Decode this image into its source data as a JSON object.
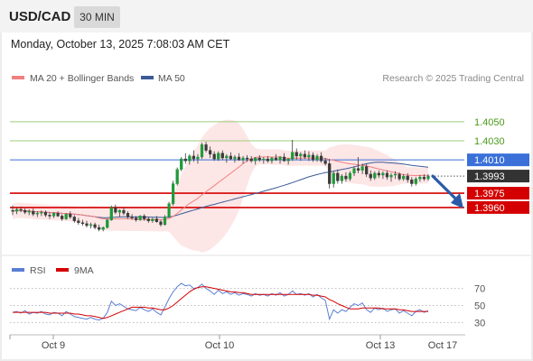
{
  "header": {
    "symbol": "USD/CAD",
    "interval": "30 MIN",
    "datetime": "Monday, October 13, 2025 7:08:03 AM CET"
  },
  "legend": {
    "ma20": "MA 20 + Bollinger Bands",
    "ma50": "MA 50",
    "credit": "Research © 2025 Trading Central"
  },
  "colors": {
    "ma20": "#f08080",
    "ma50": "#3a5a98",
    "bands": "#fde2e2",
    "resistance": "#9ccc7a",
    "pivot": "#3a70d8",
    "support": "#d40000",
    "price_tag": "#333333",
    "arrow": "#2a5aa8",
    "rsi": "#5a7fd4",
    "rsi_ma": "#d40000"
  },
  "chart_data": [
    {
      "type": "candlestick",
      "ylim": [
        1.3922,
        1.4085
      ],
      "x_ticks": [
        "Oct 9",
        "Oct 10",
        "Oct 13",
        "Oct 17"
      ],
      "levels": [
        {
          "value": 1.405,
          "label": "1.4050",
          "kind": "resistance"
        },
        {
          "value": 1.403,
          "label": "1.4030",
          "kind": "resistance"
        },
        {
          "value": 1.401,
          "label": "1.4010",
          "kind": "pivot"
        },
        {
          "value": 1.3975,
          "label": "1.3975",
          "kind": "support"
        },
        {
          "value": 1.396,
          "label": "1.3960",
          "kind": "support"
        }
      ],
      "last_price": {
        "value": 1.3993,
        "label": "1.3993"
      },
      "forecast": {
        "from": 1.3993,
        "to": 1.396,
        "direction": "down"
      },
      "series": [
        {
          "name": "MA 20 + Bollinger Bands"
        },
        {
          "name": "MA 50"
        }
      ],
      "ohlc": [
        [
          1.3957,
          1.3962,
          1.3952,
          1.3956
        ],
        [
          1.3956,
          1.396,
          1.3953,
          1.3958
        ],
        [
          1.3958,
          1.3961,
          1.3955,
          1.3957
        ],
        [
          1.3957,
          1.3959,
          1.3953,
          1.3955
        ],
        [
          1.3955,
          1.3958,
          1.3952,
          1.3956
        ],
        [
          1.3956,
          1.3959,
          1.3951,
          1.3953
        ],
        [
          1.3953,
          1.3956,
          1.395,
          1.3954
        ],
        [
          1.3954,
          1.3957,
          1.3951,
          1.3955
        ],
        [
          1.3955,
          1.3957,
          1.395,
          1.3952
        ],
        [
          1.3952,
          1.3955,
          1.3948,
          1.3951
        ],
        [
          1.3951,
          1.3955,
          1.3949,
          1.3954
        ],
        [
          1.3954,
          1.3956,
          1.395,
          1.3951
        ],
        [
          1.3951,
          1.3953,
          1.3946,
          1.3948
        ],
        [
          1.3948,
          1.3954,
          1.3947,
          1.3953
        ],
        [
          1.3953,
          1.3956,
          1.3948,
          1.395
        ],
        [
          1.395,
          1.3952,
          1.3944,
          1.3946
        ],
        [
          1.3946,
          1.3949,
          1.3942,
          1.3944
        ],
        [
          1.3944,
          1.3947,
          1.3941,
          1.3943
        ],
        [
          1.3943,
          1.3946,
          1.3939,
          1.3941
        ],
        [
          1.3941,
          1.3944,
          1.3938,
          1.3942
        ],
        [
          1.3942,
          1.3944,
          1.3937,
          1.3939
        ],
        [
          1.3939,
          1.3942,
          1.3935,
          1.3937
        ],
        [
          1.3937,
          1.394,
          1.3935,
          1.3939
        ],
        [
          1.3939,
          1.3948,
          1.3938,
          1.3947
        ],
        [
          1.3947,
          1.3962,
          1.3946,
          1.396
        ],
        [
          1.396,
          1.3963,
          1.3953,
          1.3955
        ],
        [
          1.3955,
          1.3958,
          1.395,
          1.3957
        ],
        [
          1.3957,
          1.396,
          1.3952,
          1.3954
        ],
        [
          1.3954,
          1.3956,
          1.3948,
          1.395
        ],
        [
          1.395,
          1.3953,
          1.3947,
          1.3949
        ],
        [
          1.3949,
          1.3951,
          1.3945,
          1.3947
        ],
        [
          1.3947,
          1.3952,
          1.3946,
          1.3951
        ],
        [
          1.3951,
          1.3953,
          1.3946,
          1.3948
        ],
        [
          1.3948,
          1.395,
          1.3944,
          1.3946
        ],
        [
          1.3946,
          1.3949,
          1.3944,
          1.3948
        ],
        [
          1.3948,
          1.3951,
          1.3944,
          1.3945
        ],
        [
          1.3945,
          1.3947,
          1.394,
          1.3942
        ],
        [
          1.3942,
          1.3952,
          1.3941,
          1.395
        ],
        [
          1.395,
          1.3966,
          1.3949,
          1.3964
        ],
        [
          1.3964,
          1.3988,
          1.3962,
          1.3985
        ],
        [
          1.3985,
          1.4002,
          1.3983,
          1.4
        ],
        [
          1.4,
          1.4013,
          1.3998,
          1.4011
        ],
        [
          1.4011,
          1.4017,
          1.4006,
          1.4009
        ],
        [
          1.4009,
          1.4016,
          1.4005,
          1.4014
        ],
        [
          1.4014,
          1.402,
          1.4008,
          1.4011
        ],
        [
          1.4011,
          1.4016,
          1.4006,
          1.4013
        ],
        [
          1.4013,
          1.4028,
          1.4011,
          1.4026
        ],
        [
          1.4026,
          1.4029,
          1.4018,
          1.402
        ],
        [
          1.402,
          1.4024,
          1.4012,
          1.4016
        ],
        [
          1.4016,
          1.4019,
          1.4009,
          1.4011
        ],
        [
          1.4011,
          1.4019,
          1.4009,
          1.4017
        ],
        [
          1.4017,
          1.402,
          1.401,
          1.4012
        ],
        [
          1.4012,
          1.4016,
          1.4007,
          1.4014
        ],
        [
          1.4014,
          1.4018,
          1.401,
          1.4011
        ],
        [
          1.4011,
          1.4015,
          1.4007,
          1.4013
        ],
        [
          1.4013,
          1.4017,
          1.4009,
          1.401
        ],
        [
          1.401,
          1.4014,
          1.4006,
          1.4012
        ],
        [
          1.4012,
          1.4015,
          1.4008,
          1.4011
        ],
        [
          1.4011,
          1.4014,
          1.4007,
          1.4009
        ],
        [
          1.4009,
          1.4013,
          1.4005,
          1.4012
        ],
        [
          1.4012,
          1.4015,
          1.4008,
          1.401
        ],
        [
          1.401,
          1.4013,
          1.4006,
          1.4011
        ],
        [
          1.4011,
          1.4014,
          1.4007,
          1.4009
        ],
        [
          1.4009,
          1.4013,
          1.4006,
          1.4012
        ],
        [
          1.4012,
          1.4016,
          1.4009,
          1.401
        ],
        [
          1.401,
          1.4014,
          1.4006,
          1.4013
        ],
        [
          1.4013,
          1.4017,
          1.4008,
          1.4009
        ],
        [
          1.4009,
          1.4012,
          1.4005,
          1.4011
        ],
        [
          1.4011,
          1.4031,
          1.4009,
          1.4018
        ],
        [
          1.4018,
          1.4022,
          1.401,
          1.4014
        ],
        [
          1.4014,
          1.4018,
          1.4009,
          1.4016
        ],
        [
          1.4016,
          1.402,
          1.4011,
          1.4013
        ],
        [
          1.4013,
          1.4019,
          1.4009,
          1.4015
        ],
        [
          1.4015,
          1.4018,
          1.4008,
          1.401
        ],
        [
          1.401,
          1.4016,
          1.4008,
          1.4014
        ],
        [
          1.4014,
          1.4018,
          1.4007,
          1.4009
        ],
        [
          1.4009,
          1.4012,
          1.4004,
          1.4006
        ],
        [
          1.4006,
          1.4011,
          1.398,
          1.3985
        ],
        [
          1.3985,
          1.3998,
          1.3981,
          1.3996
        ],
        [
          1.3996,
          1.4,
          1.3985,
          1.3988
        ],
        [
          1.3988,
          1.3995,
          1.3985,
          1.3993
        ],
        [
          1.3993,
          1.3997,
          1.3987,
          1.399
        ],
        [
          1.399,
          1.3998,
          1.3988,
          1.3996
        ],
        [
          1.3996,
          1.4003,
          1.3993,
          1.4001
        ],
        [
          1.4001,
          1.4013,
          1.3996,
          1.3999
        ],
        [
          1.3999,
          1.4006,
          1.3995,
          1.4003
        ],
        [
          1.4003,
          1.4006,
          1.3992,
          1.3995
        ],
        [
          1.3995,
          1.3999,
          1.3988,
          1.3991
        ],
        [
          1.3991,
          1.3998,
          1.3989,
          1.3996
        ],
        [
          1.3996,
          1.3999,
          1.3991,
          1.3994
        ],
        [
          1.3994,
          1.3998,
          1.399,
          1.3996
        ],
        [
          1.3996,
          1.3999,
          1.3989,
          1.3992
        ],
        [
          1.3992,
          1.3996,
          1.3987,
          1.3994
        ],
        [
          1.3994,
          1.3998,
          1.399,
          1.3995
        ],
        [
          1.3995,
          1.3997,
          1.3988,
          1.399
        ],
        [
          1.399,
          1.3995,
          1.3988,
          1.3993
        ],
        [
          1.3993,
          1.3996,
          1.3986,
          1.3989
        ],
        [
          1.3989,
          1.3992,
          1.3982,
          1.3985
        ],
        [
          1.3985,
          1.3992,
          1.3983,
          1.399
        ],
        [
          1.399,
          1.3994,
          1.3987,
          1.3992
        ],
        [
          1.3992,
          1.3995,
          1.3988,
          1.399
        ],
        [
          1.399,
          1.3995,
          1.3988,
          1.3993
        ]
      ]
    },
    {
      "type": "line",
      "ylim": [
        22,
        78
      ],
      "y_ticks": [
        70,
        50,
        30
      ],
      "series": [
        {
          "name": "RSI",
          "values": [
            42,
            43,
            41,
            44,
            40,
            42,
            41,
            43,
            40,
            39,
            42,
            41,
            38,
            43,
            40,
            37,
            36,
            35,
            34,
            36,
            34,
            33,
            35,
            42,
            55,
            50,
            52,
            49,
            46,
            45,
            44,
            48,
            45,
            43,
            46,
            42,
            39,
            48,
            58,
            66,
            72,
            76,
            73,
            74,
            70,
            71,
            75,
            70,
            67,
            63,
            68,
            64,
            66,
            63,
            65,
            62,
            64,
            63,
            61,
            64,
            62,
            63,
            61,
            64,
            62,
            65,
            61,
            63,
            67,
            63,
            64,
            62,
            64,
            60,
            63,
            59,
            56,
            34,
            45,
            41,
            45,
            43,
            48,
            52,
            50,
            53,
            45,
            42,
            47,
            45,
            47,
            43,
            45,
            46,
            41,
            44,
            41,
            38,
            43,
            45,
            42,
            44
          ]
        },
        {
          "name": "9MA",
          "values": [
            42,
            42,
            42,
            42,
            42,
            42,
            42,
            42,
            42,
            41,
            41,
            41,
            41,
            41,
            41,
            40,
            40,
            39,
            38,
            38,
            37,
            36,
            35,
            36,
            38,
            40,
            42,
            44,
            46,
            48,
            48,
            48,
            48,
            47,
            47,
            46,
            45,
            45,
            47,
            50,
            54,
            58,
            62,
            66,
            69,
            71,
            72,
            72,
            71,
            70,
            69,
            68,
            67,
            66,
            66,
            65,
            65,
            64,
            63,
            63,
            63,
            63,
            63,
            63,
            63,
            63,
            63,
            63,
            63,
            63,
            63,
            63,
            63,
            62,
            62,
            61,
            60,
            57,
            55,
            52,
            50,
            48,
            46,
            46,
            46,
            47,
            47,
            47,
            47,
            47,
            46,
            46,
            46,
            46,
            45,
            45,
            44,
            43,
            43,
            43,
            43,
            43
          ]
        }
      ]
    }
  ]
}
